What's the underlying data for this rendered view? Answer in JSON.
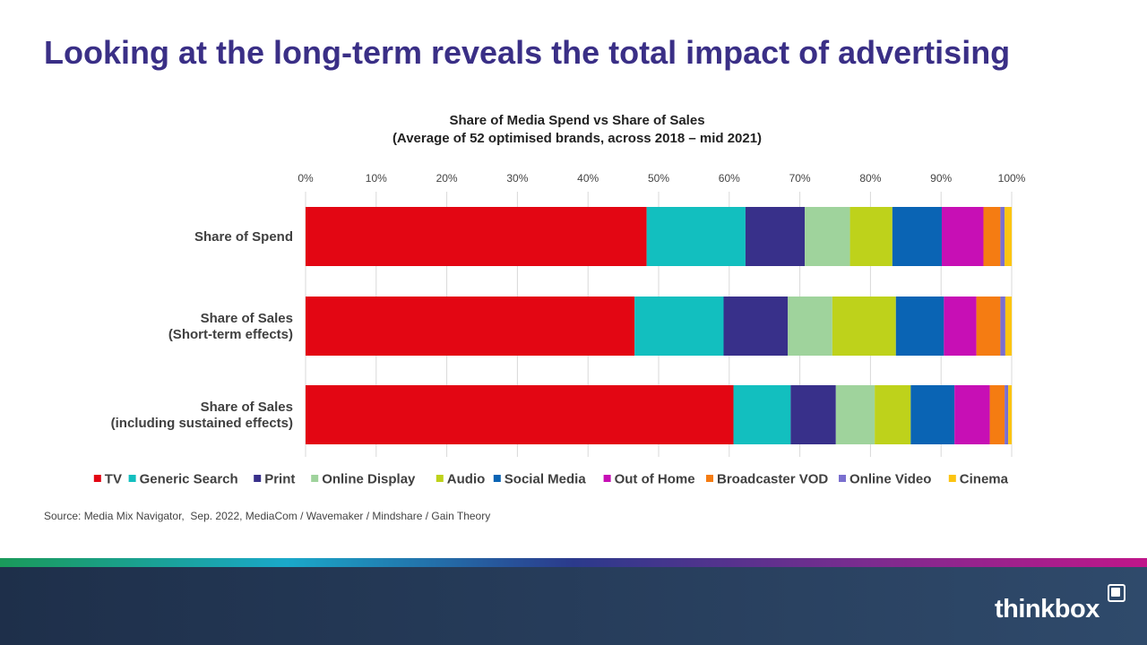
{
  "page": {
    "title": "Looking at the long-term reveals the total impact of advertising",
    "source": "Source: Media Mix Navigator,  Sep. 2022, MediaCom / Wavemaker / Mindshare / Gain Theory",
    "logo_text": "thinkbox",
    "footer_colors": [
      "#1e2f4a",
      "#2f4a6b"
    ],
    "stripe_colors": [
      "#1a9a5a",
      "#1aa8c9",
      "#2b3a8c",
      "#7a2c8f",
      "#c0168a"
    ]
  },
  "chart_data": {
    "type": "bar",
    "orientation": "horizontal",
    "stacked": true,
    "title": "Share of Media Spend vs Share of Sales",
    "subtitle": "(Average of 52 optimised brands, across 2018 – mid 2021)",
    "categories": [
      [
        "Share of Spend"
      ],
      [
        "Share of Sales",
        "(Short-term effects)"
      ],
      [
        "Share of Sales",
        "(including sustained effects)"
      ]
    ],
    "xlim": [
      0,
      100
    ],
    "ticks": [
      "0%",
      "10%",
      "20%",
      "30%",
      "40%",
      "50%",
      "60%",
      "70%",
      "80%",
      "90%",
      "100%"
    ],
    "grid": true,
    "legend": "bottom",
    "series": [
      {
        "name": "TV",
        "color": "#e30613",
        "values": [
          48.3,
          46.6,
          60.6
        ]
      },
      {
        "name": "Generic Search",
        "color": "#12bfbf",
        "values": [
          14.0,
          12.6,
          8.1
        ]
      },
      {
        "name": "Print",
        "color": "#38308a",
        "values": [
          8.4,
          9.1,
          6.4
        ]
      },
      {
        "name": "Online Display",
        "color": "#9fd39c",
        "values": [
          6.4,
          6.3,
          5.5
        ]
      },
      {
        "name": "Audio",
        "color": "#bed21b",
        "values": [
          6.0,
          9.0,
          5.1
        ]
      },
      {
        "name": "Social Media",
        "color": "#0a64b4",
        "values": [
          7.0,
          6.8,
          6.2
        ]
      },
      {
        "name": "Out of Home",
        "color": "#c70fb5",
        "values": [
          5.9,
          4.6,
          5.0
        ]
      },
      {
        "name": "Broadcaster VOD",
        "color": "#f57c12",
        "values": [
          2.4,
          3.4,
          2.1
        ]
      },
      {
        "name": "Online Video",
        "color": "#7a6fcf",
        "values": [
          0.6,
          0.7,
          0.5
        ]
      },
      {
        "name": "Cinema",
        "color": "#fcc411",
        "values": [
          1.0,
          0.9,
          0.5
        ]
      }
    ]
  }
}
